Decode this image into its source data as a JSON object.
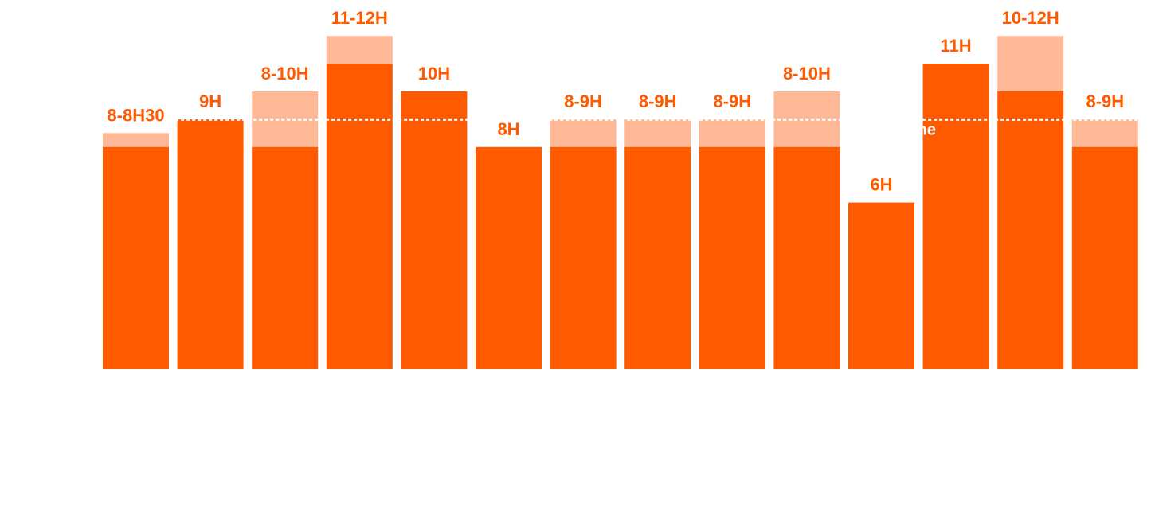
{
  "chart_data": {
    "type": "bar",
    "title": "",
    "xlabel": "",
    "ylabel": "",
    "ylim": [
      0,
      12
    ],
    "grid": false,
    "legend": "none",
    "categories": [
      "",
      "",
      "",
      "",
      "",
      "",
      "",
      "",
      "",
      "",
      "",
      "",
      "",
      ""
    ],
    "labels": [
      "8-8H30",
      "9H",
      "8-10H",
      "11-12H",
      "10H",
      "8H",
      "8-9H",
      "8-9H",
      "8-9H",
      "8-10H",
      "6H",
      "11H",
      "10-12H",
      "8-9H"
    ],
    "series": [
      {
        "values": [
          8,
          9,
          8,
          11,
          10,
          8,
          8,
          8,
          8,
          8,
          6,
          11,
          10,
          8
        ]
      },
      {
        "values": [
          0.5,
          0,
          2,
          1,
          0,
          0,
          1,
          1,
          1,
          2,
          0,
          0,
          2,
          1
        ]
      }
    ],
    "reference_line": {
      "value": 9,
      "label": "ne"
    },
    "colors": {
      "base": "#FF5A00",
      "range": "#FFB896",
      "label": "#FF5A00",
      "reference": "#FFFFFF"
    }
  }
}
